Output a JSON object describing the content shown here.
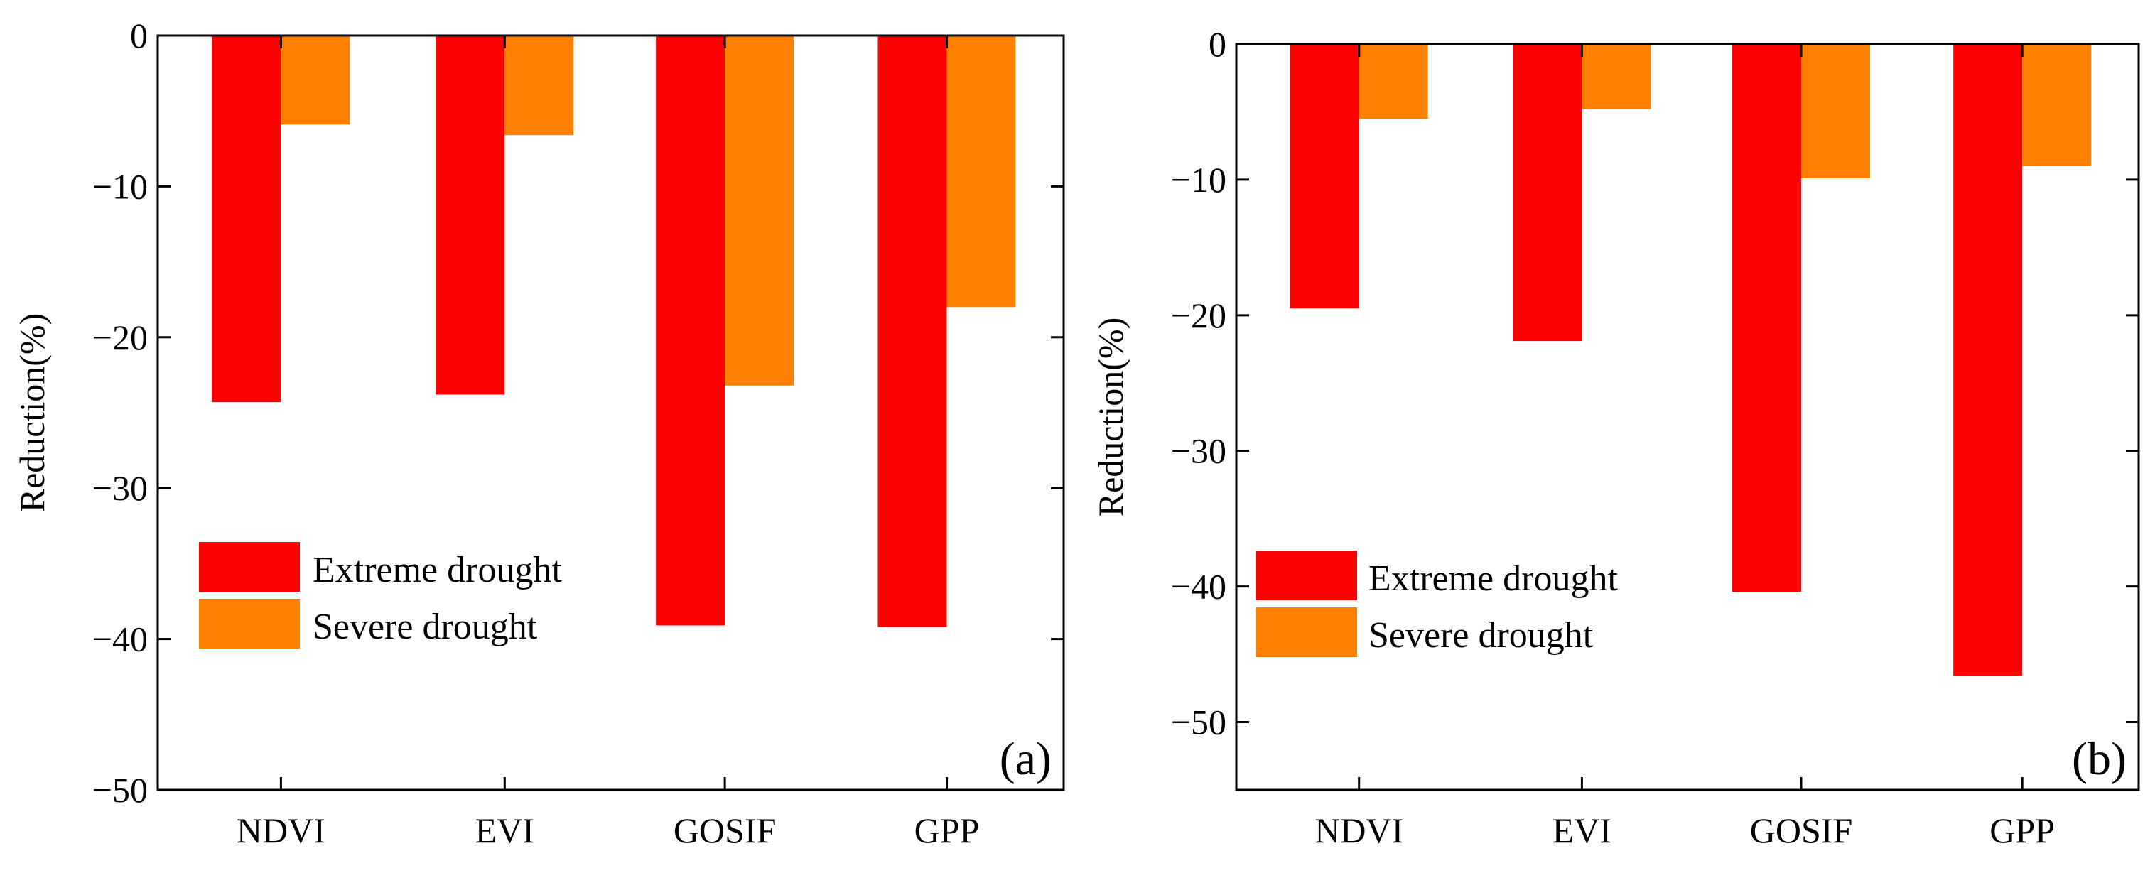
{
  "chart_data": [
    {
      "type": "bar",
      "panel_label": "(a)",
      "categories": [
        "NDVI",
        "EVI",
        "GOSIF",
        "GPP"
      ],
      "series": [
        {
          "name": "Extreme drought",
          "color": "#ff0000",
          "values": [
            -24.3,
            -23.8,
            -39.1,
            -39.2
          ]
        },
        {
          "name": "Severe drought",
          "color": "#ff8000",
          "values": [
            -5.9,
            -6.6,
            -23.2,
            -18.0
          ]
        }
      ],
      "ylabel": "Reduction(%)",
      "xlabel": "",
      "ylim": [
        -50,
        0
      ],
      "yticks": [
        0,
        -10,
        -20,
        -30,
        -40,
        -50
      ],
      "grid": false,
      "legend_position": "lower-left"
    },
    {
      "type": "bar",
      "panel_label": "(b)",
      "categories": [
        "NDVI",
        "EVI",
        "GOSIF",
        "GPP"
      ],
      "series": [
        {
          "name": "Extreme drought",
          "color": "#ff0000",
          "values": [
            -19.5,
            -21.9,
            -40.4,
            -46.6
          ]
        },
        {
          "name": "Severe drought",
          "color": "#ff8000",
          "values": [
            -5.5,
            -4.8,
            -9.9,
            -9.0
          ]
        }
      ],
      "ylabel": "Reduction(%)",
      "xlabel": "",
      "ylim": [
        -55,
        0
      ],
      "yticks": [
        0,
        -10,
        -20,
        -30,
        -40,
        -50
      ],
      "grid": false,
      "legend_position": "lower-left"
    }
  ]
}
